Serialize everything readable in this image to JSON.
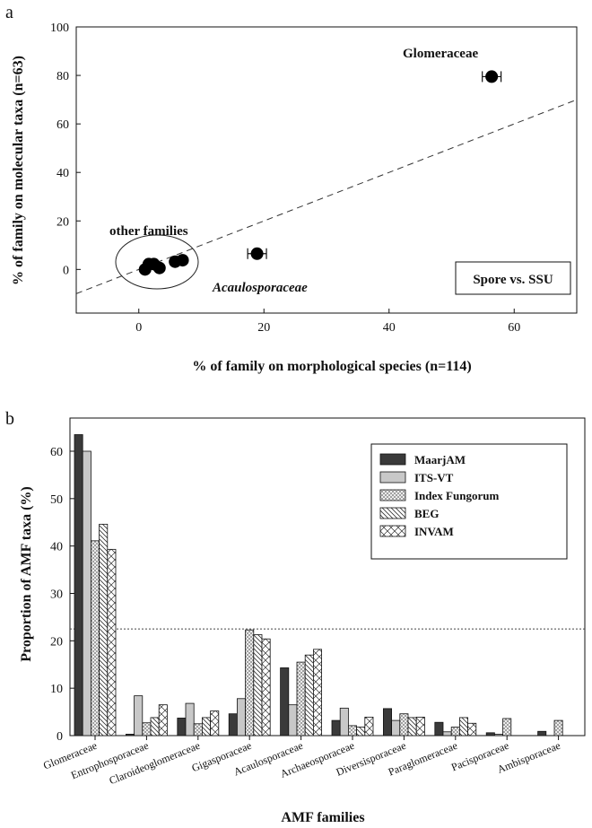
{
  "chart_data": [
    {
      "panel_label": "a",
      "type": "scatter",
      "xlabel": "% of family on morphological species (n=114)",
      "ylabel": "% of family on molecular taxa (n=63)",
      "xlim": [
        -10,
        70
      ],
      "ylim": [
        -18,
        100
      ],
      "xticks": [
        0,
        20,
        40,
        60
      ],
      "yticks": [
        0,
        20,
        40,
        60,
        80,
        100
      ],
      "diagonal": "1:1 dashed line",
      "legend_box": "Spore vs. SSU",
      "points": [
        {
          "x": 56.4,
          "y": 79.5,
          "xerr": 1.5,
          "label": "Glomeraceae"
        },
        {
          "x": 18.9,
          "y": 6.5,
          "xerr": 1.5,
          "label": "Acaulosporaceae"
        },
        {
          "x": 1.0,
          "y": 0.0
        },
        {
          "x": 1.6,
          "y": 2.2
        },
        {
          "x": 2.4,
          "y": 2.2
        },
        {
          "x": 3.3,
          "y": 0.6
        },
        {
          "x": 5.8,
          "y": 3.2
        },
        {
          "x": 7.0,
          "y": 3.8
        }
      ],
      "annotations": [
        {
          "text": "Glomeraceae",
          "style": "bold"
        },
        {
          "text": "Acaulosporaceae",
          "style": "bold-italic"
        },
        {
          "text": "other families",
          "style": "bold"
        }
      ]
    },
    {
      "panel_label": "b",
      "type": "bar",
      "xlabel": "AMF families",
      "ylabel": "Proportion of AMF taxa (%)",
      "ylim": [
        0,
        67
      ],
      "yticks": [
        0,
        10,
        20,
        30,
        40,
        50,
        60
      ],
      "reference_line": 22.5,
      "legend_position": "top-right",
      "categories": [
        "Glomeraceae",
        "Entrophosporaceae",
        "Claroideoglomeraceae",
        "Gigasporaceae",
        "Acaulosporaceae",
        "Archaeosporaceae",
        "Diversisporaceae",
        "Paraglomeraceae",
        "Pacisporaceae",
        "Ambisporaceae"
      ],
      "series": [
        {
          "name": "MaarjAM",
          "color": "#3a3a3a",
          "pattern": "solid-dark",
          "values": [
            63.5,
            0.3,
            3.7,
            4.6,
            14.3,
            3.2,
            5.7,
            2.8,
            0.6,
            0.9
          ]
        },
        {
          "name": "ITS-VT",
          "color": "#c8c8c8",
          "pattern": "solid-light",
          "values": [
            60.0,
            8.4,
            6.8,
            7.8,
            6.5,
            5.8,
            3.2,
            0.8,
            0.3,
            0.0
          ]
        },
        {
          "name": "Index Fungorum",
          "color": "#9a9a9a",
          "pattern": "crosshatch",
          "values": [
            41.1,
            2.7,
            2.5,
            22.3,
            15.5,
            2.1,
            4.6,
            1.8,
            3.6,
            3.2
          ]
        },
        {
          "name": "BEG",
          "color": "#ffffff",
          "pattern": "diagonal",
          "values": [
            44.6,
            3.8,
            3.8,
            21.3,
            17.0,
            1.8,
            3.8,
            3.8,
            0.0,
            0.0
          ]
        },
        {
          "name": "INVAM",
          "color": "#ffffff",
          "pattern": "x-hatch",
          "values": [
            39.3,
            6.5,
            5.2,
            20.4,
            18.2,
            3.9,
            3.9,
            2.6,
            0.0,
            0.0
          ]
        }
      ]
    }
  ]
}
